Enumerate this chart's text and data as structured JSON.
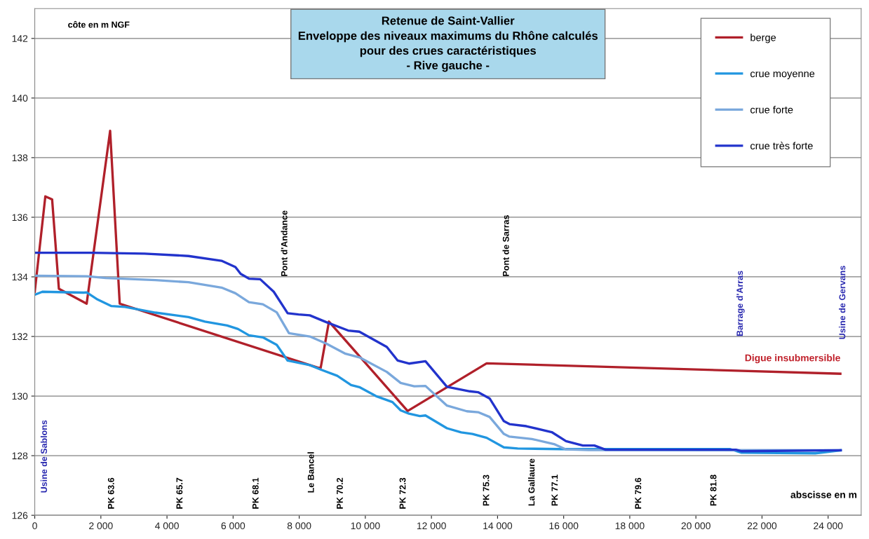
{
  "chart_data": {
    "type": "line",
    "title": "Retenue de Saint-Vallier\nEnveloppe des niveaux maximums du Rhône calculés\npour des crues caractéristiques\n- Rive gauche -",
    "xlabel": "abscisse en m",
    "ylabel": "côte en m NGF",
    "xlim": [
      0,
      25000
    ],
    "ylim": [
      126,
      143
    ],
    "xticks": [
      0,
      {
        "value": 2000,
        "label": "2 000"
      },
      {
        "value": 4000,
        "label": "4 000"
      },
      {
        "value": 6000,
        "label": "6 000"
      },
      {
        "value": 8000,
        "label": "8 000"
      },
      {
        "value": 10000,
        "label": "10 000"
      },
      {
        "value": 12000,
        "label": "12 000"
      },
      {
        "value": 14000,
        "label": "14 000"
      },
      {
        "value": 16000,
        "label": "16 000"
      },
      {
        "value": 18000,
        "label": "18 000"
      },
      {
        "value": 20000,
        "label": "20 000"
      },
      {
        "value": 22000,
        "label": "22 000"
      },
      {
        "value": 24000,
        "label": "24 000"
      }
    ],
    "yticks": [
      126,
      128,
      130,
      132,
      134,
      136,
      138,
      140,
      142
    ],
    "grid": "y",
    "legend": "top right",
    "marker": "none",
    "line_style": "solid",
    "series": [
      {
        "name": "berge",
        "color": "#b0202a",
        "x": [
          0,
          320,
          525,
          730,
          1570,
          2280,
          2570,
          8570,
          8650,
          8900,
          11280,
          13670,
          24370
        ],
        "values": [
          133.5,
          136.7,
          136.6,
          133.6,
          133.1,
          138.9,
          133.1,
          130.95,
          130.95,
          132.5,
          129.5,
          131.1,
          130.75
        ]
      },
      {
        "name": "crue moyenne",
        "color": "#2196e0",
        "x": [
          0,
          230,
          1480,
          1570,
          1900,
          2320,
          2730,
          3650,
          4650,
          5150,
          5820,
          6150,
          6480,
          6900,
          7320,
          7650,
          8320,
          8650,
          9150,
          9570,
          9820,
          10320,
          10820,
          11070,
          11320,
          11650,
          11820,
          12470,
          12900,
          13240,
          13670,
          14190,
          14610,
          15900,
          21040,
          21380,
          23610,
          24380
        ],
        "values": [
          133.4,
          133.5,
          133.47,
          133.48,
          133.24,
          133.02,
          132.99,
          132.8,
          132.65,
          132.5,
          132.37,
          132.25,
          132.04,
          131.97,
          131.72,
          131.19,
          131.04,
          130.89,
          130.68,
          130.37,
          130.3,
          130.0,
          129.8,
          129.52,
          129.41,
          129.33,
          129.35,
          128.92,
          128.78,
          128.73,
          128.6,
          128.28,
          128.24,
          128.22,
          128.22,
          128.1,
          128.08,
          128.18
        ]
      },
      {
        "name": "crue forte",
        "color": "#7aa8dc",
        "x": [
          0,
          1570,
          2150,
          3650,
          4650,
          5650,
          6070,
          6480,
          6900,
          7320,
          7690,
          8320,
          8820,
          9400,
          9820,
          10650,
          11070,
          11480,
          11820,
          12470,
          13070,
          13410,
          13760,
          14190,
          14360,
          15040,
          15730,
          16070,
          16760,
          24380
        ],
        "values": [
          134.04,
          134.02,
          133.96,
          133.89,
          133.82,
          133.64,
          133.45,
          133.15,
          133.08,
          132.81,
          132.11,
          132.0,
          131.76,
          131.42,
          131.3,
          130.81,
          130.44,
          130.33,
          130.34,
          129.68,
          129.49,
          129.46,
          129.3,
          128.73,
          128.64,
          128.56,
          128.38,
          128.21,
          128.19,
          128.18
        ]
      },
      {
        "name": "crue très forte",
        "color": "#2233cc",
        "x": [
          0,
          1730,
          3320,
          4650,
          5650,
          6070,
          6230,
          6480,
          6820,
          7230,
          7650,
          7980,
          8320,
          8820,
          9480,
          9820,
          10650,
          10980,
          11320,
          11820,
          12470,
          13160,
          13410,
          13760,
          14190,
          14360,
          14870,
          15640,
          16070,
          16580,
          16930,
          17270,
          21210,
          21380,
          24380
        ],
        "values": [
          134.81,
          134.81,
          134.78,
          134.7,
          134.54,
          134.33,
          134.1,
          133.94,
          133.92,
          133.5,
          132.78,
          132.74,
          132.71,
          132.48,
          132.2,
          132.16,
          131.65,
          131.19,
          131.09,
          131.17,
          130.31,
          130.16,
          130.13,
          129.92,
          129.16,
          129.06,
          128.99,
          128.79,
          128.49,
          128.34,
          128.34,
          128.2,
          128.2,
          128.15,
          128.18
        ]
      }
    ],
    "annotations": [
      "Digue insubmersible",
      "Usine de Sablons",
      "PK 63.6",
      "PK 65.7",
      "PK 68.1",
      "Pont d'Andance",
      "Le Bancel",
      "PK 70.2",
      "PK 72.3",
      "PK 75.3",
      "Pont de Sarras",
      "La Gallaure",
      "PK 77.1",
      "PK 79.6",
      "PK 81.8",
      "Barrage d'Arras",
      "Usine de Gervans"
    ]
  }
}
